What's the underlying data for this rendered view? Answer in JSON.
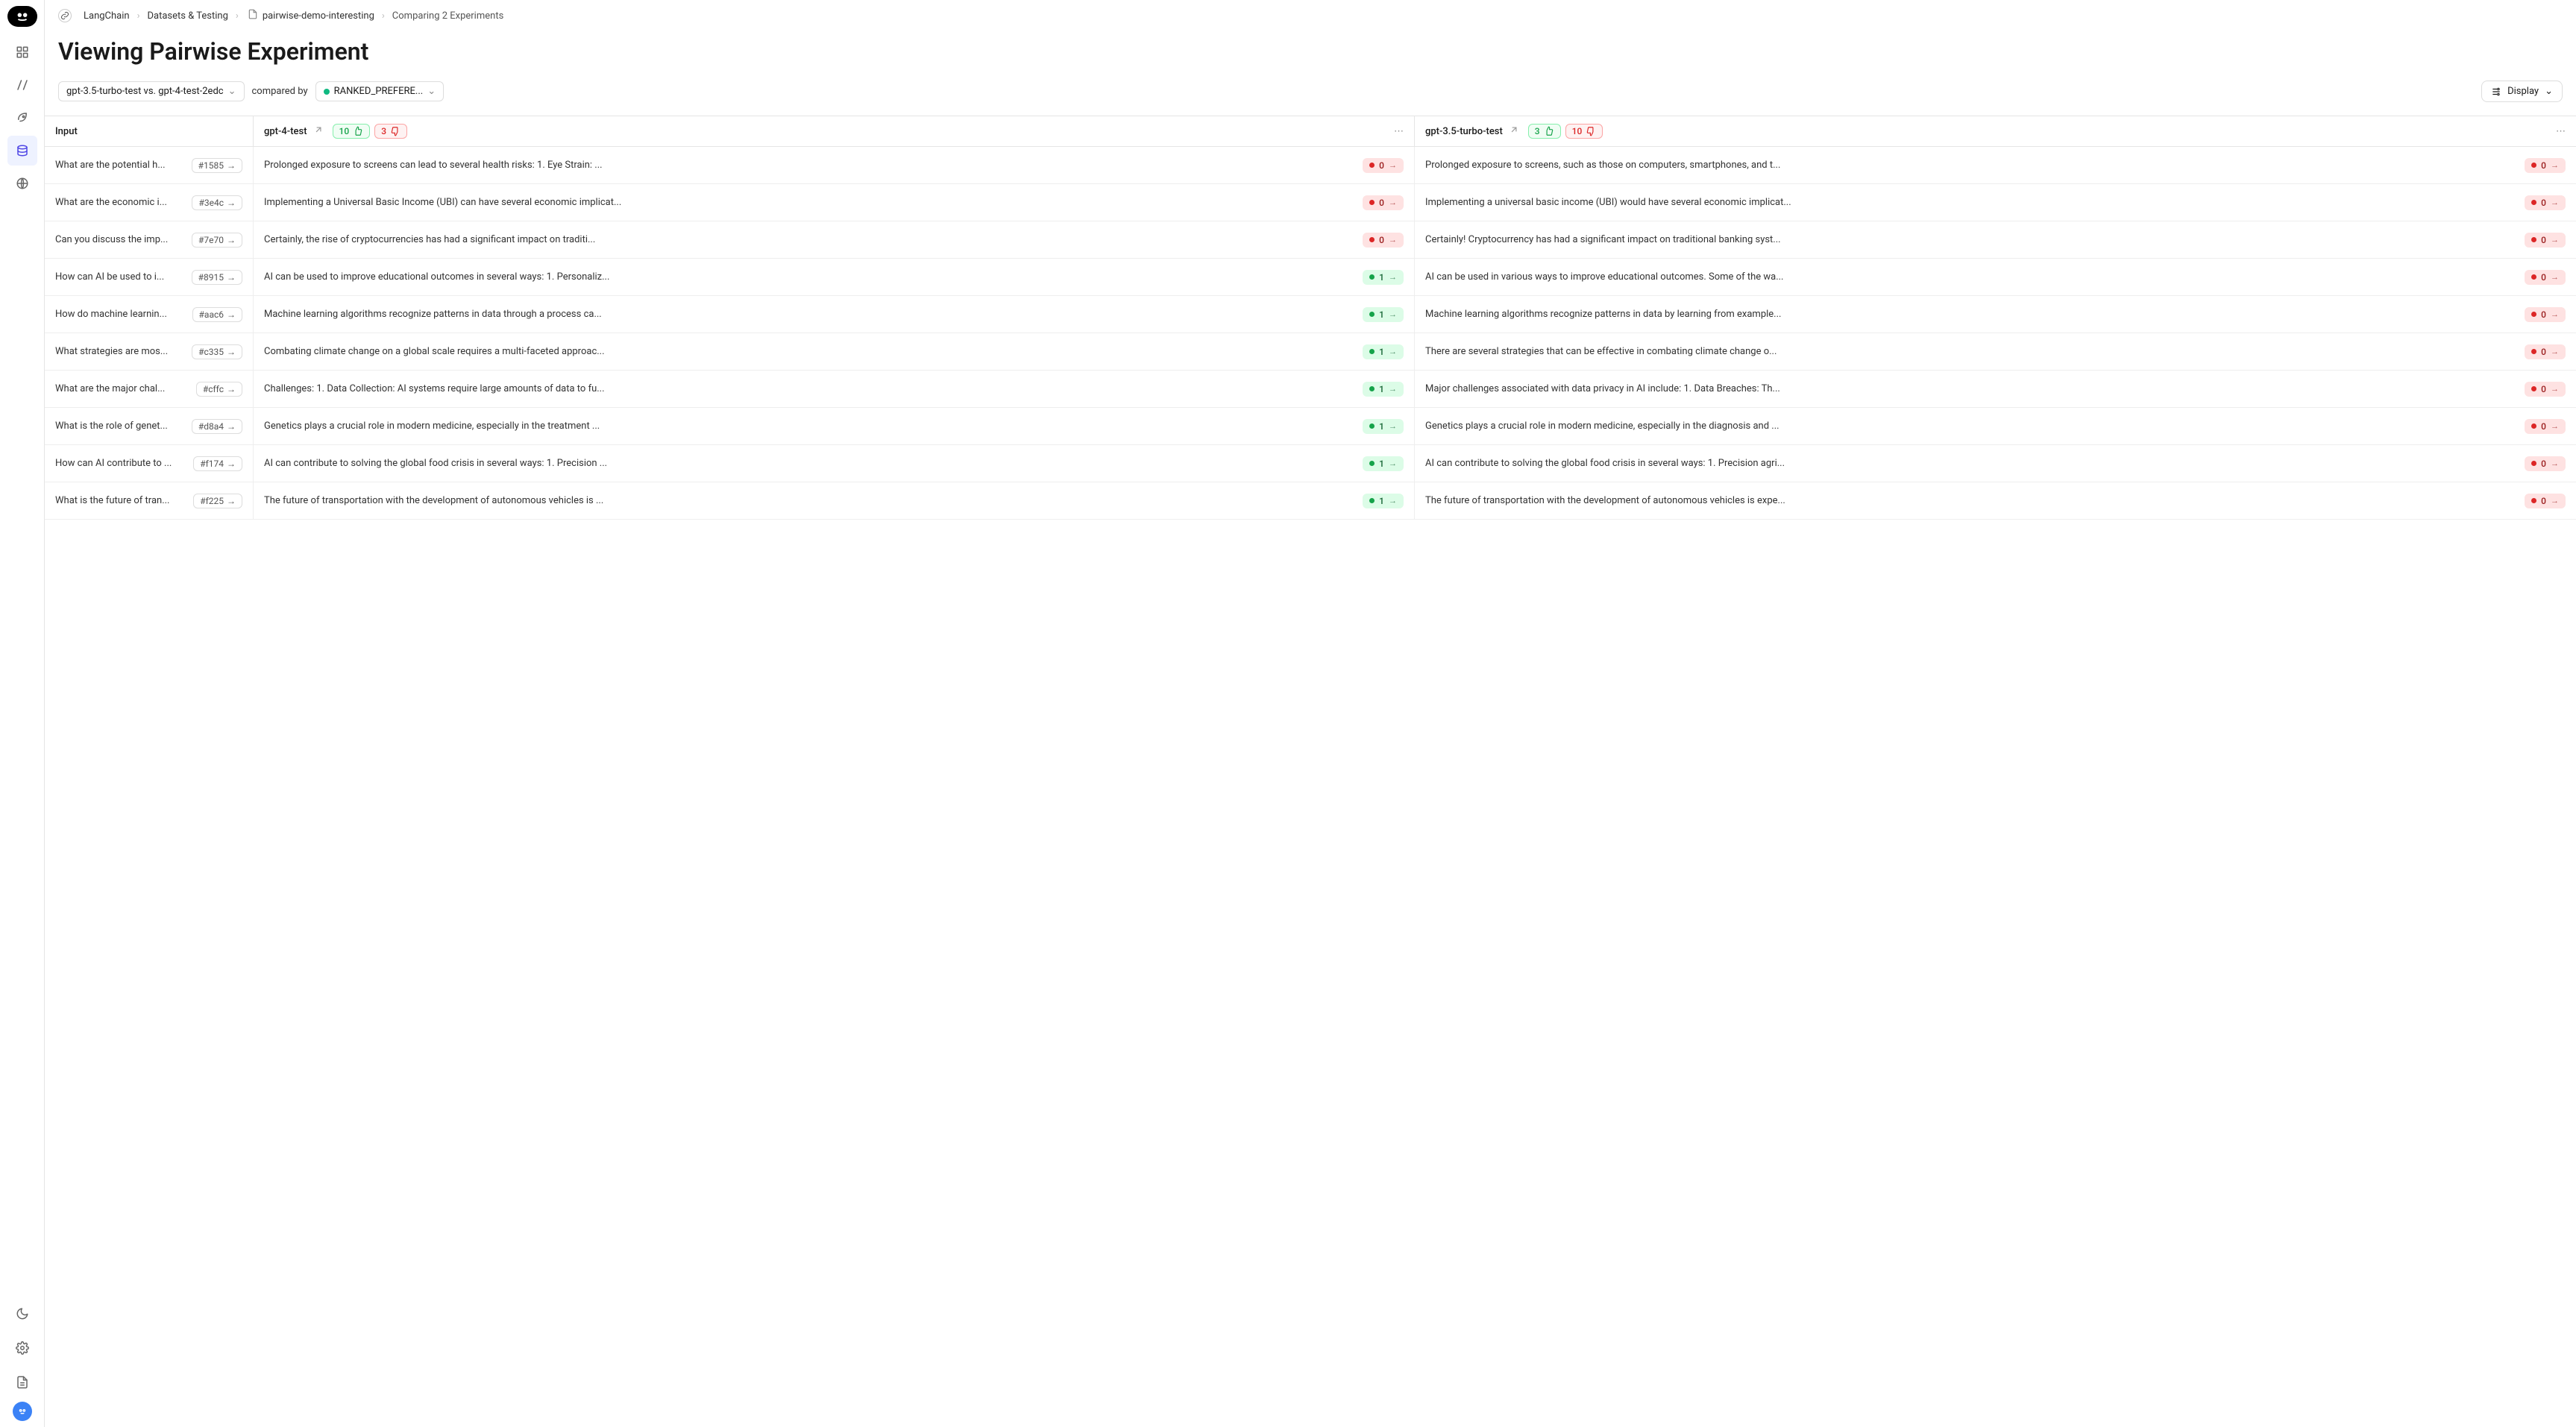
{
  "breadcrumbs": {
    "org": "LangChain",
    "section": "Datasets & Testing",
    "dataset": "pairwise-demo-interesting",
    "page": "Comparing 2 Experiments"
  },
  "page_title": "Viewing Pairwise Experiment",
  "comparison": {
    "selector_label": "gpt-3.5-turbo-test vs. gpt-4-test-2edc",
    "compared_by_label": "compared by",
    "metric_label": "RANKED_PREFERE...",
    "display_label": "Display"
  },
  "columns": {
    "input": "Input",
    "a": {
      "name": "gpt-4-test",
      "up": "10",
      "down": "3"
    },
    "b": {
      "name": "gpt-3.5-turbo-test",
      "up": "3",
      "down": "10"
    }
  },
  "rows": [
    {
      "input": "What are the potential h...",
      "hash": "#1585",
      "a": "Prolonged exposure to screens can lead to several health risks: 1. Eye Strain: ...",
      "a_score": 0,
      "b": "Prolonged exposure to screens, such as those on computers, smartphones, and t...",
      "b_score": 0
    },
    {
      "input": "What are the economic i...",
      "hash": "#3e4c",
      "a": "Implementing a Universal Basic Income (UBI) can have several economic implicat...",
      "a_score": 0,
      "b": "Implementing a universal basic income (UBI) would have several economic implicat...",
      "b_score": 0
    },
    {
      "input": "Can you discuss the imp...",
      "hash": "#7e70",
      "a": "Certainly, the rise of cryptocurrencies has had a significant impact on traditi...",
      "a_score": 0,
      "b": "Certainly! Cryptocurrency has had a significant impact on traditional banking syst...",
      "b_score": 0
    },
    {
      "input": "How can AI be used to i...",
      "hash": "#8915",
      "a": "AI can be used to improve educational outcomes in several ways: 1. Personaliz...",
      "a_score": 1,
      "b": "AI can be used in various ways to improve educational outcomes. Some of the wa...",
      "b_score": 0
    },
    {
      "input": "How do machine learnin...",
      "hash": "#aac6",
      "a": "Machine learning algorithms recognize patterns in data through a process ca...",
      "a_score": 1,
      "b": "Machine learning algorithms recognize patterns in data by learning from example...",
      "b_score": 0
    },
    {
      "input": "What strategies are mos...",
      "hash": "#c335",
      "a": "Combating climate change on a global scale requires a multi-faceted approac...",
      "a_score": 1,
      "b": "There are several strategies that can be effective in combating climate change o...",
      "b_score": 0
    },
    {
      "input": "What are the major chal...",
      "hash": "#cffc",
      "a": "Challenges: 1. Data Collection: AI systems require large amounts of data to fu...",
      "a_score": 1,
      "b": "Major challenges associated with data privacy in AI include: 1. Data Breaches: Th...",
      "b_score": 0
    },
    {
      "input": "What is the role of genet...",
      "hash": "#d8a4",
      "a": "Genetics plays a crucial role in modern medicine, especially in the treatment ...",
      "a_score": 1,
      "b": "Genetics plays a crucial role in modern medicine, especially in the diagnosis and ...",
      "b_score": 0
    },
    {
      "input": "How can AI contribute to ...",
      "hash": "#f174",
      "a": "AI can contribute to solving the global food crisis in several ways: 1. Precision ...",
      "a_score": 1,
      "b": "AI can contribute to solving the global food crisis in several ways: 1. Precision agri...",
      "b_score": 0
    },
    {
      "input": "What is the future of tran...",
      "hash": "#f225",
      "a": "The future of transportation with the development of autonomous vehicles is ...",
      "a_score": 1,
      "b": "The future of transportation with the development of autonomous vehicles is expe...",
      "b_score": 0
    }
  ]
}
